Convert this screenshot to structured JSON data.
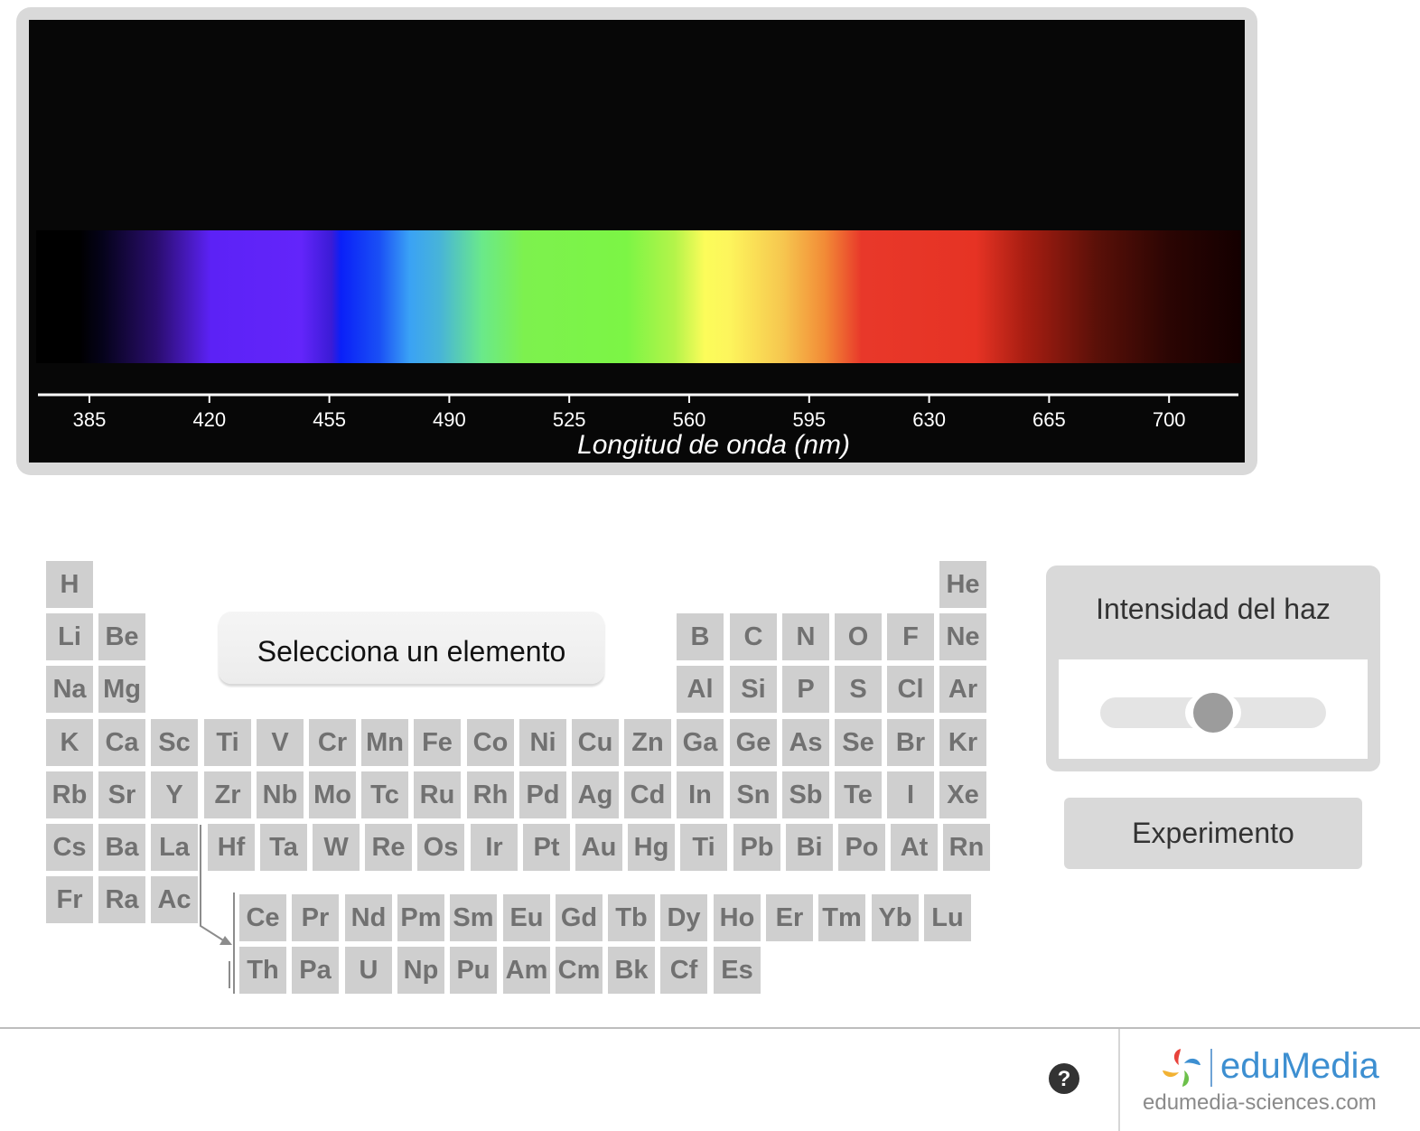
{
  "spectrum": {
    "axis_title": "Longitud de onda (nm)",
    "ticks": [
      "385",
      "420",
      "455",
      "490",
      "525",
      "560",
      "595",
      "630",
      "665",
      "700"
    ],
    "band_colors": {
      "violet": "#5c22f6",
      "blue": "#0a20f8",
      "green": "#7cf545",
      "yellow": "#fcfc5a",
      "red": "#e63324"
    }
  },
  "periodic_table": {
    "prompt": "Selecciona un elemento",
    "main_rows": [
      [
        "H",
        null,
        null,
        null,
        null,
        null,
        null,
        null,
        null,
        null,
        null,
        null,
        null,
        null,
        null,
        null,
        null,
        "He"
      ],
      [
        "Li",
        "Be",
        null,
        null,
        null,
        null,
        null,
        null,
        null,
        null,
        null,
        null,
        "B",
        "C",
        "N",
        "O",
        "F",
        "Ne"
      ],
      [
        "Na",
        "Mg",
        null,
        null,
        null,
        null,
        null,
        null,
        null,
        null,
        null,
        null,
        "Al",
        "Si",
        "P",
        "S",
        "Cl",
        "Ar"
      ],
      [
        "K",
        "Ca",
        "Sc",
        "Ti",
        "V",
        "Cr",
        "Mn",
        "Fe",
        "Co",
        "Ni",
        "Cu",
        "Zn",
        "Ga",
        "Ge",
        "As",
        "Se",
        "Br",
        "Kr"
      ],
      [
        "Rb",
        "Sr",
        "Y",
        "Zr",
        "Nb",
        "Mo",
        "Tc",
        "Ru",
        "Rh",
        "Pd",
        "Ag",
        "Cd",
        "In",
        "Sn",
        "Sb",
        "Te",
        "I",
        "Xe"
      ],
      [
        "Cs",
        "Ba",
        "La",
        "Hf",
        "Ta",
        "W",
        "Re",
        "Os",
        "Ir",
        "Pt",
        "Au",
        "Hg",
        "Ti",
        "Pb",
        "Bi",
        "Po",
        "At",
        "Rn"
      ],
      [
        "Fr",
        "Ra",
        "Ac"
      ]
    ],
    "lanthanides": [
      "Ce",
      "Pr",
      "Nd",
      "Pm",
      "Sm",
      "Eu",
      "Gd",
      "Tb",
      "Dy",
      "Ho",
      "Er",
      "Tm",
      "Yb",
      "Lu"
    ],
    "actinides": [
      "Th",
      "Pa",
      "U",
      "Np",
      "Pu",
      "Am",
      "Cm",
      "Bk",
      "Cf",
      "Es"
    ]
  },
  "controls": {
    "intensity_title": "Intensidad del haz",
    "intensity_level": 0.5,
    "experiment_label": "Experimento"
  },
  "footer": {
    "help_symbol": "?",
    "brand_name": "eduMedia",
    "brand_url": "edumedia-sciences.com",
    "brand_color": "#3d8fd1"
  }
}
